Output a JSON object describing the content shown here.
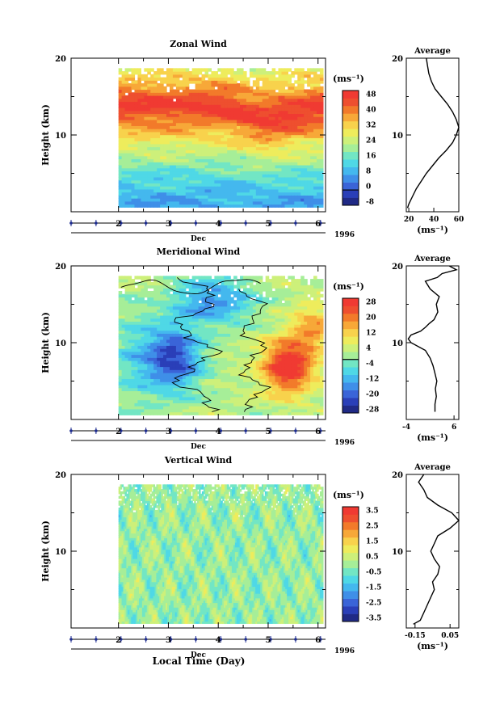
{
  "figure": {
    "xlabel_bottom": "Local Time (Day)",
    "month_label": "Dec",
    "year_label": "1996",
    "y_axis_label": "Height (km)",
    "unit_label": "(ms⁻¹)",
    "profile_title": "Average"
  },
  "chart_data": [
    {
      "type": "heatmap",
      "title": "Zonal Wind",
      "ylabel": "Height (km)",
      "xlabel": "Dec",
      "x_range_days": [
        1.05,
        6.15
      ],
      "data_x_range_days": [
        2.0,
        6.1
      ],
      "ylim": [
        0,
        20
      ],
      "x_ticks": [
        "2",
        "3",
        "4",
        "5",
        "6"
      ],
      "y_ticks": [
        "10",
        "20"
      ],
      "colorbar": {
        "label": "(ms⁻¹)",
        "levels": [
          -8,
          -4,
          0,
          4,
          8,
          12,
          16,
          20,
          24,
          28,
          32,
          36,
          40,
          44,
          48
        ],
        "tick_labels": [
          "-8",
          "0",
          "8",
          "16",
          "24",
          "32",
          "40",
          "48"
        ],
        "zero_line": 0
      },
      "profile": {
        "title": "Average",
        "xlabel": "(ms⁻¹)",
        "xlim": [
          18,
          60
        ],
        "x_ticks": [
          "20",
          "40",
          "60"
        ],
        "heights": [
          0.5,
          1,
          2,
          3,
          4,
          5,
          6,
          7,
          8,
          9,
          10,
          11,
          12,
          13,
          14,
          15,
          16,
          17,
          18,
          19,
          20
        ],
        "values": [
          19,
          20,
          23,
          26,
          30,
          34,
          39,
          44,
          50,
          55,
          58,
          60,
          58,
          55,
          51,
          46,
          41,
          38,
          36,
          35,
          34
        ]
      }
    },
    {
      "type": "heatmap",
      "title": "Meridional Wind",
      "ylabel": "Height (km)",
      "xlabel": "Dec",
      "x_range_days": [
        1.05,
        6.15
      ],
      "data_x_range_days": [
        2.0,
        6.1
      ],
      "ylim": [
        0,
        20
      ],
      "x_ticks": [
        "2",
        "3",
        "4",
        "5",
        "6"
      ],
      "y_ticks": [
        "10",
        "20"
      ],
      "colorbar": {
        "label": "(ms⁻¹)",
        "levels": [
          -28,
          -24,
          -20,
          -16,
          -12,
          -8,
          -4,
          0,
          4,
          8,
          12,
          16,
          20,
          24,
          28
        ],
        "tick_labels": [
          "-28",
          "-20",
          "-12",
          "-4",
          "4",
          "12",
          "20",
          "28"
        ],
        "zero_line": 0
      },
      "profile": {
        "title": "Average",
        "xlabel": "(ms⁻¹)",
        "xlim": [
          -4,
          7
        ],
        "x_ticks": [
          "-4",
          "6"
        ],
        "heights": [
          1,
          2,
          3,
          4,
          5,
          6,
          7,
          8,
          9,
          10,
          10.5,
          11,
          11.5,
          12,
          12.5,
          13,
          14,
          15,
          16,
          17,
          18,
          18.5,
          19,
          19.5,
          20
        ],
        "values": [
          2,
          2,
          2.3,
          2.1,
          2.4,
          2,
          1.6,
          1,
          0,
          -3,
          -3.6,
          -3,
          -1,
          0,
          0.8,
          1.8,
          2.6,
          2.3,
          2.9,
          1,
          0,
          2.5,
          3.5,
          6.5,
          5
        ]
      }
    },
    {
      "type": "heatmap",
      "title": "Vertical Wind",
      "ylabel": "Height (km)",
      "xlabel": "Dec",
      "x_range_days": [
        1.05,
        6.15
      ],
      "data_x_range_days": [
        2.0,
        6.1
      ],
      "ylim": [
        0,
        20
      ],
      "x_ticks": [
        "2",
        "3",
        "4",
        "5",
        "6"
      ],
      "y_ticks": [
        "10",
        "20"
      ],
      "colorbar": {
        "label": "(ms⁻¹)",
        "levels": [
          -3.5,
          -3,
          -2.5,
          -2,
          -1.5,
          -1,
          -0.5,
          0,
          0.5,
          1,
          1.5,
          2,
          2.5,
          3,
          3.5
        ],
        "tick_labels": [
          "-3.5",
          "-2.5",
          "-1.5",
          "-0.5",
          "0.5",
          "1.5",
          "2.5",
          "3.5"
        ]
      },
      "profile": {
        "title": "Average",
        "xlabel": "(ms⁻¹)",
        "xlim": [
          -0.2,
          0.1
        ],
        "x_ticks": [
          "-0.15",
          "0.05"
        ],
        "heights": [
          0.5,
          1,
          2,
          3,
          4,
          5,
          6,
          7,
          8,
          9,
          10,
          11,
          12,
          13,
          14,
          15,
          16,
          17,
          18,
          19,
          20
        ],
        "values": [
          -0.16,
          -0.12,
          -0.1,
          -0.08,
          -0.06,
          -0.04,
          -0.05,
          -0.02,
          -0.01,
          -0.04,
          -0.06,
          -0.04,
          -0.02,
          0.05,
          0.1,
          0.06,
          -0.02,
          -0.08,
          -0.1,
          -0.13,
          -0.1
        ]
      }
    }
  ],
  "colors": {
    "palette": [
      "#202a86",
      "#2a3fb8",
      "#3a64d8",
      "#3f8fe8",
      "#44b8ee",
      "#4fd8e6",
      "#72e6c4",
      "#a6ee98",
      "#cdf07a",
      "#eeec5c",
      "#f8d24c",
      "#f7a838",
      "#f27a2a",
      "#ee4f2f",
      "#f03a32"
    ],
    "axis": "#000000",
    "tick_dot": "#1c2b8f",
    "gap": "#ffffff",
    "contour": "#000000"
  }
}
